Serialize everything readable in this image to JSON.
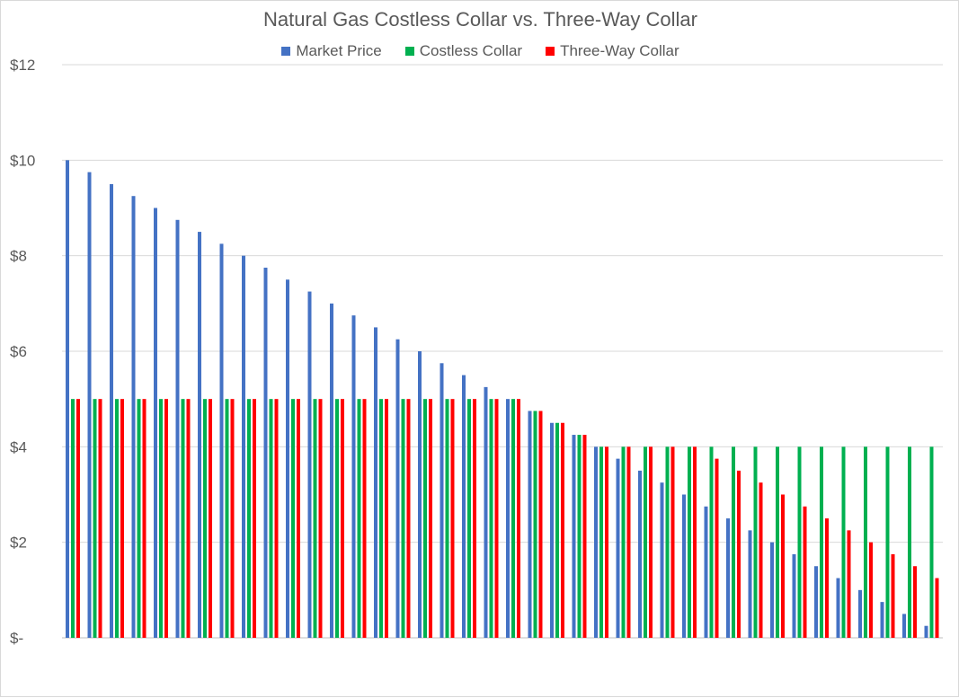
{
  "chart_data": {
    "type": "bar",
    "title": "Natural Gas Costless Collar vs. Three-Way Collar",
    "xlabel": "",
    "ylabel": "",
    "ylim": [
      0,
      12
    ],
    "yticks": [
      0,
      2,
      4,
      6,
      8,
      10,
      12
    ],
    "ytick_labels": [
      "$-",
      "$2",
      "$4",
      "$6",
      "$8",
      "$10",
      "$12"
    ],
    "grid": true,
    "legend": "top",
    "series": [
      {
        "name": "Market Price",
        "color": "#4472C4",
        "values": [
          10,
          9.75,
          9.5,
          9.25,
          9,
          8.75,
          8.5,
          8.25,
          8,
          7.75,
          7.5,
          7.25,
          7,
          6.75,
          6.5,
          6.25,
          6,
          5.75,
          5.5,
          5.25,
          5,
          4.75,
          4.5,
          4.25,
          4,
          3.75,
          3.5,
          3.25,
          3,
          2.75,
          2.5,
          2.25,
          2,
          1.75,
          1.5,
          1.25,
          1,
          0.75,
          0.5,
          0.25
        ]
      },
      {
        "name": "Costless Collar",
        "color": "#00B050",
        "values": [
          5,
          5,
          5,
          5,
          5,
          5,
          5,
          5,
          5,
          5,
          5,
          5,
          5,
          5,
          5,
          5,
          5,
          5,
          5,
          5,
          5,
          4.75,
          4.5,
          4.25,
          4,
          4,
          4,
          4,
          4,
          4,
          4,
          4,
          4,
          4,
          4,
          4,
          4,
          4,
          4,
          4
        ]
      },
      {
        "name": "Three-Way Collar",
        "color": "#FF0000",
        "values": [
          5,
          5,
          5,
          5,
          5,
          5,
          5,
          5,
          5,
          5,
          5,
          5,
          5,
          5,
          5,
          5,
          5,
          5,
          5,
          5,
          5,
          4.75,
          4.5,
          4.25,
          4,
          4,
          4,
          4,
          4,
          3.75,
          3.5,
          3.25,
          3,
          2.75,
          2.5,
          2.25,
          2,
          1.75,
          1.5,
          1.25
        ]
      }
    ]
  }
}
